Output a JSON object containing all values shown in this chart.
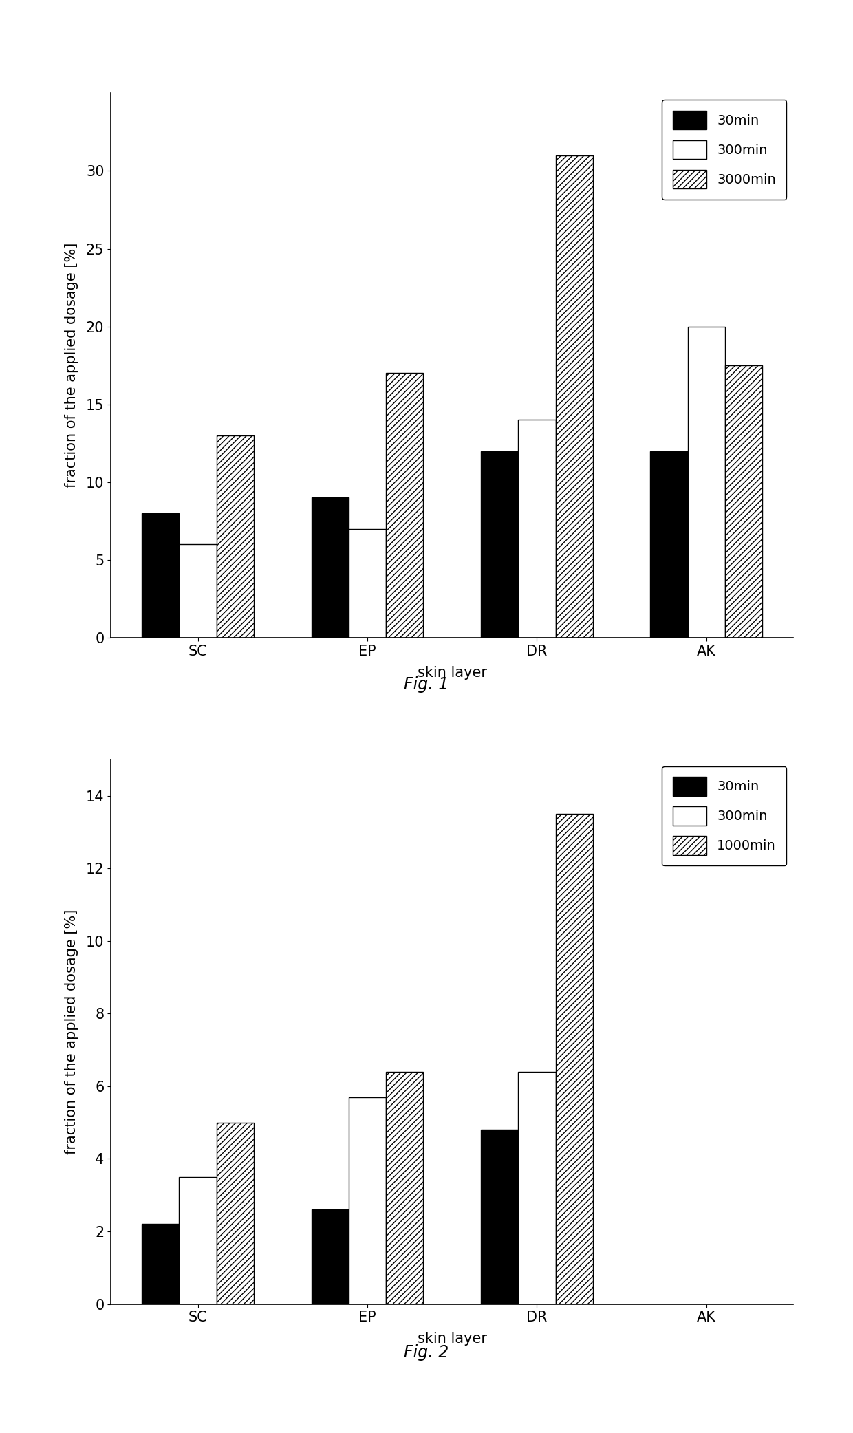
{
  "fig1": {
    "categories": [
      "SC",
      "EP",
      "DR",
      "AK"
    ],
    "series": [
      {
        "label": "30min",
        "values": [
          8.0,
          9.0,
          12.0,
          12.0
        ],
        "style": "solid_black"
      },
      {
        "label": "300min",
        "values": [
          6.0,
          7.0,
          14.0,
          20.0
        ],
        "style": "solid_white"
      },
      {
        "label": "3000min",
        "values": [
          13.0,
          17.0,
          31.0,
          17.5
        ],
        "style": "hatch"
      }
    ],
    "ylabel": "fraction of the applied dosage [%]",
    "xlabel": "skin layer",
    "caption": "Fig. 1",
    "ylim": [
      0,
      35
    ],
    "yticks": [
      0,
      5,
      10,
      15,
      20,
      25,
      30
    ]
  },
  "fig2": {
    "categories": [
      "SC",
      "EP",
      "DR",
      "AK"
    ],
    "series": [
      {
        "label": "30min",
        "values": [
          2.2,
          2.6,
          4.8,
          0.0
        ],
        "style": "solid_black"
      },
      {
        "label": "300min",
        "values": [
          3.5,
          5.7,
          6.4,
          0.0
        ],
        "style": "solid_white"
      },
      {
        "label": "1000min",
        "values": [
          5.0,
          6.4,
          13.5,
          0.0
        ],
        "style": "hatch"
      }
    ],
    "ylabel": "fraction of the applied dosage [%]",
    "xlabel": "skin layer",
    "caption": "Fig. 2",
    "ylim": [
      0,
      15
    ],
    "yticks": [
      0,
      2,
      4,
      6,
      8,
      10,
      12,
      14
    ]
  },
  "bar_width": 0.22,
  "background_color": "#ffffff",
  "font_size": 15,
  "caption_font_size": 17,
  "legend_font_size": 14
}
